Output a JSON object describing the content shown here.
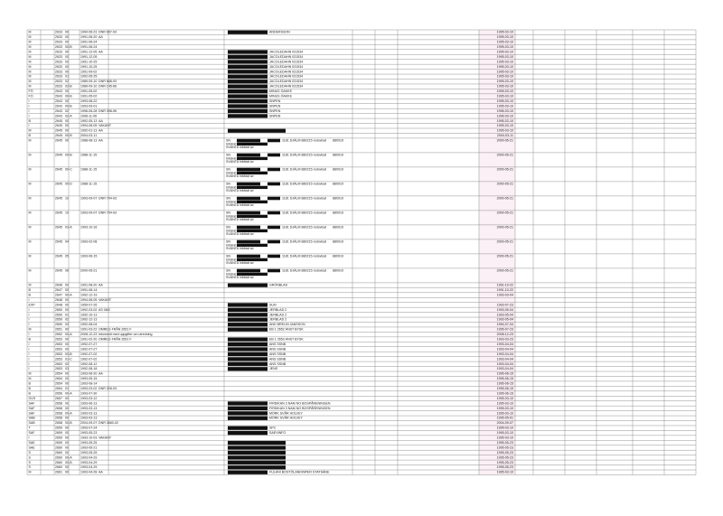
{
  "table": {
    "rows": [
      {
        "code": "M",
        "num": "2633",
        "sub": "00",
        "date": "1990-06-23",
        "note": "DNR 657-93",
        "desc": "ANDERSSON",
        "redacted": true,
        "reg": "1995-03-10"
      },
      {
        "code": "M",
        "num": "2633",
        "sub": "00",
        "date": "1991-06-20",
        "note": "AA",
        "reg": "1995-03-10"
      },
      {
        "code": "M",
        "num": "2633",
        "sub": "00",
        "date": "1991-06-24",
        "reg": "1995-03-10"
      },
      {
        "code": "M",
        "num": "2633",
        "sub": "00-B",
        "date": "1991-06-24",
        "reg": "1995-03-10"
      },
      {
        "code": "M",
        "num": "2633",
        "sub": "00",
        "date": "1991-12-05",
        "note": "AA",
        "desc": "JACOLEDAHN 031534",
        "redacted": true,
        "reg": "1995-03-10"
      },
      {
        "code": "M",
        "num": "2633",
        "sub": "00",
        "date": "1991-12-05",
        "desc": "JACOLEDAHN 031534",
        "redacted": true,
        "reg": "1995-03-10"
      },
      {
        "code": "M",
        "num": "2633",
        "sub": "00",
        "date": "1991-10-25",
        "desc": "JACOLEDAHN 031534",
        "redacted": true,
        "reg": "1995-03-10"
      },
      {
        "code": "M",
        "num": "2633",
        "sub": "00",
        "date": "1991-10-25",
        "desc": "JACOLEDAHN 031534",
        "redacted": true,
        "reg": "1995-03-10"
      },
      {
        "code": "M",
        "num": "2633",
        "sub": "00",
        "date": "1991-09-02",
        "desc": "JACOLEDAHN 031534",
        "redacted": true,
        "reg": "1995-03-10"
      },
      {
        "code": "M",
        "num": "2633",
        "sub": "01",
        "date": "1992-05-25",
        "desc": "JACOLEDAHN 031534",
        "redacted": true,
        "reg": "1995-03-10"
      },
      {
        "code": "M",
        "num": "2633",
        "sub": "02",
        "date": "1989-09-10",
        "note": "DNR 668-93",
        "desc": "JACOLEDAHN 031534",
        "redacted": true,
        "reg": "1995-03-10"
      },
      {
        "code": "M",
        "num": "2633",
        "sub": "02-B",
        "date": "1989-09-10",
        "note": "DNR 145-66",
        "desc": "JACOLEDAHN 031534",
        "redacted": true,
        "reg": "1995-03-10"
      },
      {
        "code": "FÖ",
        "num": "2643",
        "sub": "00",
        "date": "1991-05-02",
        "desc": "MINUS ÖAKKE",
        "redacted": true,
        "reg": "1995-03-10"
      },
      {
        "code": "FÖ",
        "num": "2643",
        "sub": "00-B",
        "date": "1991-05-02",
        "desc": "MINUS ÖAKKE",
        "redacted": true,
        "reg": "1995-03-10"
      },
      {
        "code": "I",
        "num": "2643",
        "sub": "00",
        "date": "1993-08-22",
        "desc": "SNPEN",
        "redacted": true,
        "reg": "1995-03-10"
      },
      {
        "code": "I",
        "num": "2643",
        "sub": "00-B",
        "date": "1993-09-01",
        "desc": "SNPEN",
        "redacted": true,
        "reg": "1995-03-10"
      },
      {
        "code": "I",
        "num": "2643",
        "sub": "02",
        "date": "1996-06-28",
        "note": "DNR 398-96",
        "desc": "SNPEN",
        "redacted": true,
        "reg": "1996-03-10"
      },
      {
        "code": "I",
        "num": "2643",
        "sub": "02-A",
        "date": "1996-11-06",
        "desc": "SNPEN",
        "redacted": true,
        "reg": "1996-03-10"
      },
      {
        "code": "B",
        "num": "2645",
        "sub": "00",
        "date": "1992-05-13",
        "note": "AA",
        "reg": "1995-03-10"
      },
      {
        "code": "I",
        "num": "2645",
        "sub": "00",
        "date": "1994-08-05",
        "note": "VAKANT",
        "reg": "1995-03-10"
      },
      {
        "code": "M",
        "num": "2645",
        "sub": "00",
        "date": "1992-01-13",
        "note": "AA",
        "redacted": true,
        "reg": "1995-03-10"
      },
      {
        "code": "B",
        "num": "2645",
        "sub": "00-B",
        "date": "2004-03-11",
        "reg": "2004-03-11"
      },
      {
        "code": "M",
        "num": "2645",
        "sub": "00",
        "date": "1988-08-13",
        "note": "AA",
        "lines": [
          "SN",
          "Inbärat EB",
          "SVÄNTA inbärat av"
        ],
        "mid": "1181 DJÄLM 880215 redovisat",
        "right": "880919",
        "redacted": true,
        "reg": "2000-05-21"
      },
      {
        "code": "M",
        "num": "2645",
        "sub": "00-B",
        "date": "1988-11-15",
        "lines": [
          "SN",
          "Inbärat EB",
          "SVÄNTA inbärat av"
        ],
        "mid": "1181 DJÄLM 880215 redovisat",
        "right": "880919",
        "redacted": true,
        "reg": "2000-05-21"
      },
      {
        "code": "M",
        "num": "2645",
        "sub": "00-C",
        "date": "1988-11-15",
        "lines": [
          "SN",
          "Inbärat EB",
          "SVÄNTA inbärat av"
        ],
        "mid": "1181 DJÄLM 880215 redovisat",
        "right": "880919",
        "redacted": true,
        "reg": "2000-05-21"
      },
      {
        "code": "M",
        "num": "2645",
        "sub": "00-D",
        "date": "1988-11-15",
        "lines": [
          "SN",
          "Inbärat EB",
          "SVÄNTA inbärat av"
        ],
        "mid": "1181 DJÄLM 880215 redovisat",
        "right": "880919",
        "redacted": true,
        "reg": "2000-05-21"
      },
      {
        "code": "M",
        "num": "2645",
        "sub": "10",
        "date": "1993-09-07",
        "note": "DNR 794-93",
        "lines": [
          "SN",
          "Inbärat EB",
          "SVÄNTA inbärat av"
        ],
        "mid": "1181 DJÄLM 880215 redovisat",
        "right": "880919",
        "redacted": true,
        "reg": "2000-05-21"
      },
      {
        "code": "M",
        "num": "2645",
        "sub": "10",
        "date": "1993-09-07",
        "note": "DNR 794-93",
        "lines": [
          "SN",
          "Inbärat EB",
          "SVÄNTA inbärat av"
        ],
        "mid": "1181 DJÄLM 880215 redovisat",
        "right": "880919",
        "redacted": true,
        "reg": "2000-05-21"
      },
      {
        "code": "M",
        "num": "2645",
        "sub": "03-A",
        "date": "1993-10-16",
        "lines": [
          "SN",
          "Inbärat EB",
          "SVÄNTA inbärat av"
        ],
        "mid": "1181 DJÄLM 880215 redovisat",
        "right": "880919",
        "redacted": true,
        "reg": "2000-05-21"
      },
      {
        "code": "M",
        "num": "2645",
        "sub": "04",
        "date": "1993-02-08",
        "lines": [
          "SN",
          "Inbärat EB",
          "SVÄNTA inbärat av"
        ],
        "mid": "1181 DJÄLM 880215 redovisat",
        "right": "880919",
        "redacted": true,
        "reg": "2000-05-21"
      },
      {
        "code": "M",
        "num": "2645",
        "sub": "05",
        "date": "1993-06-15",
        "lines": [
          "SN",
          "Inbärat EB",
          "SVÄNTA inbärat av"
        ],
        "mid": "1181 DJÄLM 880215 redovisat",
        "right": "880919",
        "redacted": true,
        "reg": "2000-05-21"
      },
      {
        "code": "M",
        "num": "2645",
        "sub": "06",
        "date": "2000-05-21",
        "lines": [
          "SN",
          "Inbärat EB",
          "SVÄNTA inbärat av"
        ],
        "mid": "1181 DJÄLM 880215 redovisat",
        "right": "880919",
        "redacted": true,
        "reg": "2000-05-21"
      },
      {
        "code": "M",
        "num": "2646",
        "sub": "00",
        "date": "1991-08-20",
        "note": "AA",
        "desc": "GRÖNBLAD",
        "redacted": true,
        "reg": "1991-10-22"
      },
      {
        "code": "B",
        "num": "2647",
        "sub": "00",
        "date": "1991-08-14",
        "reg": "1991-10-22"
      },
      {
        "code": "B",
        "num": "2647",
        "sub": "00-A",
        "date": "1992-12-19",
        "reg": "1993-03-04"
      },
      {
        "code": "I",
        "num": "2648",
        "sub": "00",
        "date": "1994-08-05",
        "note": "VAKANT"
      },
      {
        "code": "EXP",
        "num": "2648",
        "sub": "00",
        "date": "1959-07-26",
        "desc": "SUN",
        "redacted": true,
        "reg": "1993-07-23"
      },
      {
        "code": "I",
        "num": "2650",
        "sub": "00",
        "date": "1992-03-02",
        "note": "AS 08/2",
        "desc": "JERBLAD 2",
        "redacted": true,
        "reg": "1993-05-04"
      },
      {
        "code": "I",
        "num": "2650",
        "sub": "01",
        "date": "1992-10-13",
        "desc": "JERBLAD 2",
        "redacted": true,
        "reg": "1993-05-04"
      },
      {
        "code": "I",
        "num": "2650",
        "sub": "02",
        "date": "1992-12-13",
        "desc": "JERBLAD 2",
        "redacted": true,
        "reg": "1993-05-04"
      },
      {
        "code": "I",
        "num": "2650",
        "sub": "03",
        "date": "1992-08-04",
        "desc": "AND BRELIN JANSSON",
        "redacted": true,
        "reg": "1994-07-04"
      },
      {
        "code": "M",
        "num": "2651",
        "sub": "00",
        "date": "1991-03-22",
        "note": "OMREG FRÅN 2651 F",
        "desc": "EB 1 2652 ANST BYSK",
        "redacted": true,
        "reg": "1995-07-23"
      },
      {
        "code": "I",
        "num": "2652",
        "sub": "00-A",
        "date": "2008-12-23",
        "note": "Inkommit med uppgifter om utredning",
        "reg": "2008-12-23"
      },
      {
        "code": "B",
        "num": "2653",
        "sub": "00",
        "date": "1991-02-20",
        "note": "OMREG FRÅN 2651 F",
        "desc": "EB 1 2653 ANST BYSK",
        "redacted": true,
        "reg": "1993-03-23"
      },
      {
        "code": "I",
        "num": "2653",
        "sub": "00",
        "date": "1992-07-27",
        "desc": "ANS SSNB",
        "redacted": true,
        "reg": "1993-04-04"
      },
      {
        "code": "I",
        "num": "2653",
        "sub": "00",
        "date": "1992-07-27",
        "desc": "ANS SSNB",
        "redacted": true,
        "reg": "1993-04-04"
      },
      {
        "code": "I",
        "num": "2653",
        "sub": "00-B",
        "date": "1992-07-02",
        "desc": "ANS SSNB",
        "redacted": true,
        "reg": "1993-04-04"
      },
      {
        "code": "I",
        "num": "2653",
        "sub": "01-C",
        "date": "1992-07-02",
        "desc": "ANS SSNB",
        "redacted": true,
        "reg": "1993-04-04"
      },
      {
        "code": "I",
        "num": "2653",
        "sub": "02",
        "date": "1992-08-12",
        "desc": "ANS SSNB",
        "redacted": true,
        "reg": "1993-04-04"
      },
      {
        "code": "I",
        "num": "2653",
        "sub": "03",
        "date": "1992-08-18",
        "desc": "JENS",
        "redacted": true,
        "reg": "1993-04-04"
      },
      {
        "code": "M",
        "num": "2654",
        "sub": "00",
        "date": "1993-06-20",
        "note": "AA",
        "reg": "1995-06-15"
      },
      {
        "code": "M",
        "num": "2654",
        "sub": "00",
        "date": "1993-05-15",
        "reg": "1995-06-15"
      },
      {
        "code": "B",
        "num": "2654",
        "sub": "00",
        "date": "1993-08-14",
        "reg": "1995-06-15"
      },
      {
        "code": "B",
        "num": "2654",
        "sub": "01",
        "date": "1993-03-02",
        "note": "DNR 328-93",
        "reg": "1995-06-15"
      },
      {
        "code": "B",
        "num": "2656",
        "sub": "00-A",
        "date": "1993-07-30",
        "reg": "1995-06-15"
      },
      {
        "code": "GVS",
        "num": "2657",
        "sub": "00",
        "date": "1993-03-12",
        "reg": "1995-03-10"
      },
      {
        "code": "SAF",
        "num": "2658",
        "sub": "00",
        "date": "1993-06-13",
        "desc": "FIRDIKAN 3 NAM NO BOSPÅRENINGEN",
        "redacted": true,
        "reg": "1995-03-10"
      },
      {
        "code": "SAF",
        "num": "2658",
        "sub": "00",
        "date": "1993-03-13",
        "desc": "FIRDIKAN 3 NAM NO BOSPÅRENINGEN",
        "redacted": true,
        "reg": "1995-03-10"
      },
      {
        "code": "SAF",
        "num": "2658",
        "sub": "00-A",
        "date": "1993-03-13",
        "desc": "MÖRK SVÅR HOLVEY",
        "redacted": true,
        "reg": "1995-03-10"
      },
      {
        "code": "SAB",
        "num": "2658",
        "sub": "00",
        "date": "1993-03-13",
        "desc": "MÖRK SVÅR HOLVEY",
        "redacted": true,
        "reg": "1995-05-01"
      },
      {
        "code": "SAB",
        "num": "2658",
        "sub": "00-B",
        "date": "2004-09-07",
        "note": "DNR 3660-02",
        "reg": "2004-09-07"
      },
      {
        "code": "T",
        "num": "2659",
        "sub": "00",
        "date": "1993-07-24",
        "desc": "SPC",
        "redacted": true,
        "reg": "1995-03-10"
      },
      {
        "code": "SAF",
        "num": "2659",
        "sub": "00",
        "date": "1993-05-23",
        "desc": "SAEVINFO",
        "redacted": true,
        "reg": "1995-03-10"
      },
      {
        "code": "I",
        "num": "2659",
        "sub": "00",
        "date": "1993-10-03",
        "note": "VAKANT",
        "reg": "1995-03-10"
      },
      {
        "code": "SAE",
        "num": "2659",
        "sub": "00",
        "date": "1993-05-25",
        "redacted": true,
        "reg": "1995-05-23"
      },
      {
        "code": "SAE",
        "num": "2660",
        "sub": "00",
        "date": "1993-05-21",
        "redacted": true,
        "reg": "1995-05-23"
      },
      {
        "code": "S",
        "num": "2660",
        "sub": "00",
        "date": "1993-05-25",
        "redacted": true,
        "reg": "1995-05-23"
      },
      {
        "code": "S",
        "num": "2660",
        "sub": "00-A",
        "date": "1993-04-29",
        "redacted": true,
        "reg": "1995-05-23"
      },
      {
        "code": "S",
        "num": "2660",
        "sub": "00-B",
        "date": "1993-04-29",
        "redacted": true,
        "reg": "1995-05-23"
      },
      {
        "code": "S",
        "num": "2660",
        "sub": "00",
        "date": "1993-04-29",
        "redacted": true,
        "reg": "1995-05-23"
      },
      {
        "code": "M",
        "num": "2661",
        "sub": "00",
        "date": "1993-04-28",
        "note": "AA",
        "desc": "FULANI BOSTÖLANDINPER STATSÄNE",
        "redacted": true,
        "reg": "1995-03-10"
      }
    ]
  }
}
